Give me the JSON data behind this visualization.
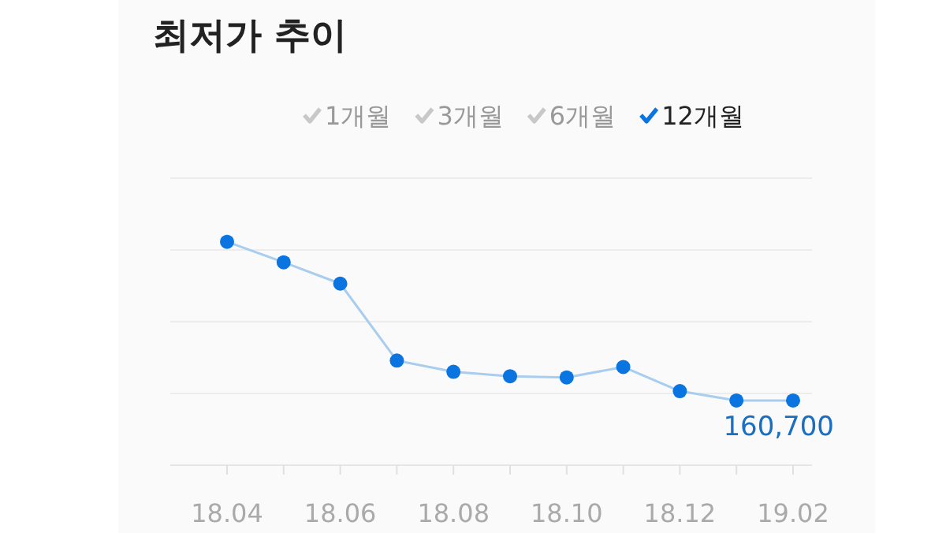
{
  "chart_data": {
    "type": "line",
    "title": "최저가 추이",
    "ylim": [
      0,
      713000
    ],
    "tick_labels": "x",
    "categories": [
      "18.04",
      null,
      "18.06",
      null,
      "18.08",
      null,
      "18.10",
      null,
      "18.12",
      null,
      "19.02"
    ],
    "series": [
      {
        "name": "12개월",
        "color": "#0a74e0",
        "values": [
          555000,
          504000,
          451000,
          260000,
          232000,
          221000,
          218000,
          244000,
          184000,
          160700,
          160700
        ],
        "value_labels": [
          null,
          null,
          null,
          null,
          null,
          null,
          null,
          null,
          null,
          null,
          "160,700"
        ]
      }
    ],
    "annotations": [
      "1개월",
      "3개월",
      "6개월"
    ],
    "grid": "y",
    "marker": "circle",
    "line_style": "solid",
    "legend": "top right"
  }
}
